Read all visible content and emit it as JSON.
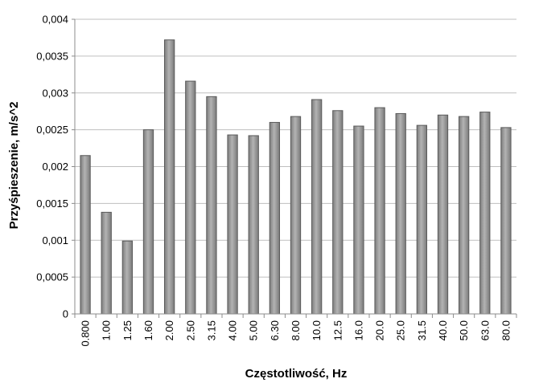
{
  "chart_data": {
    "type": "bar",
    "title": "",
    "xlabel": "Częstotliwość, Hz",
    "ylabel": "Przyśpieszenie, m/s^2",
    "categories": [
      "0.800",
      "1.00",
      "1.25",
      "1.60",
      "2.00",
      "2.50",
      "3.15",
      "4.00",
      "5.00",
      "6.30",
      "8.00",
      "10.0",
      "12.5",
      "16.0",
      "20.0",
      "25.0",
      "31.5",
      "40.0",
      "50.0",
      "63.0",
      "80.0"
    ],
    "values": [
      0.00215,
      0.00138,
      0.00099,
      0.0025,
      0.00372,
      0.00316,
      0.00295,
      0.00243,
      0.00242,
      0.0026,
      0.00268,
      0.00291,
      0.00276,
      0.00255,
      0.0028,
      0.00272,
      0.00256,
      0.0027,
      0.00268,
      0.00274,
      0.00253
    ],
    "ylim": [
      0,
      0.004
    ],
    "yticks": [
      0,
      0.0005,
      0.001,
      0.0015,
      0.002,
      0.0025,
      0.003,
      0.0035,
      0.004
    ],
    "ytick_labels": [
      "0",
      "0,0005",
      "0,001",
      "0,0015",
      "0,002",
      "0,0025",
      "0,003",
      "0,0035",
      "0,004"
    ],
    "grid": true,
    "legend": "none",
    "colors": {
      "bar_fill": "#9a9a9a",
      "bar_stroke": "#5a5a5a",
      "grid": "#bfbfbf",
      "axis": "#8c8c8c"
    }
  }
}
